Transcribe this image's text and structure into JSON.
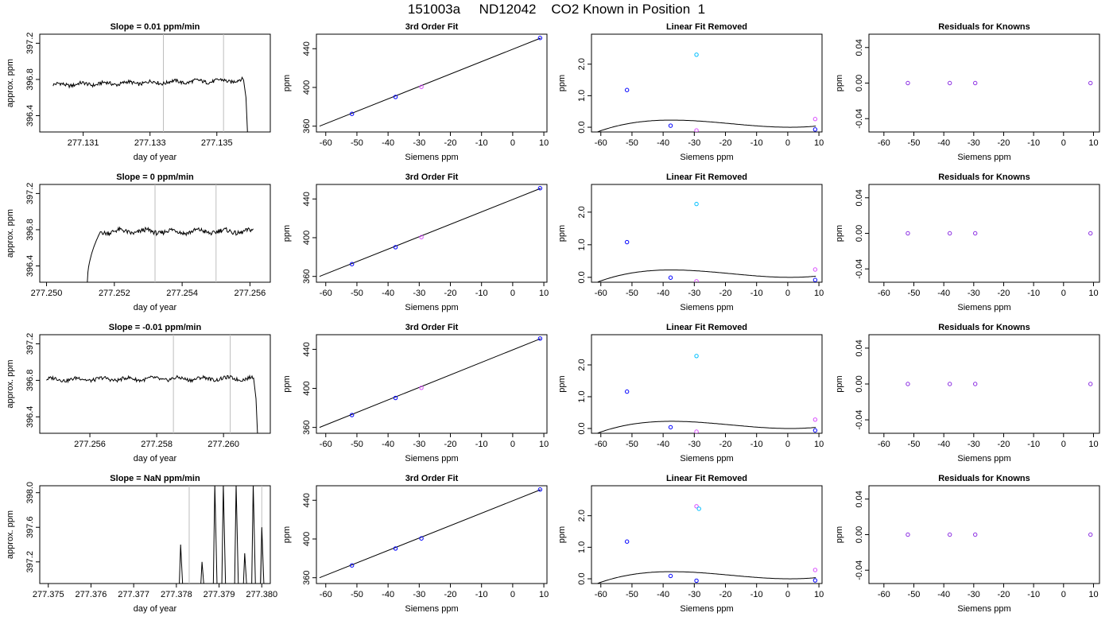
{
  "figure_title": "151003a     ND12042    CO2 Known in Position  1",
  "colors": {
    "axis": "#000000",
    "curve": "#000000",
    "gridline": "#bebebe",
    "blue": "#0000ff",
    "cyan": "#00bfff",
    "magenta": "#d94cff",
    "purple": "#8a2be2"
  },
  "chart_data": [
    {
      "row": 1,
      "panel": "time-series",
      "type": "line",
      "title": "Slope =  0.01  ppm/min",
      "xlabel": "day of year",
      "ylabel": "approx. ppm",
      "xlim": [
        277.1297,
        277.1366
      ],
      "ylim": [
        396.22,
        397.3
      ],
      "xticks": [
        277.131,
        277.133,
        277.135
      ],
      "xtick_labels": [
        "277.131",
        "277.133",
        "277.135"
      ],
      "yticks": [
        396.4,
        396.8,
        397.2
      ],
      "ytick_labels": [
        "396.4",
        "396.8",
        "397.2"
      ],
      "vlines": [
        277.1334,
        277.1352
      ],
      "level": 396.73,
      "series": [
        {
          "x": [
            277.1301,
            277.1358
          ],
          "y": [
            396.74,
            396.79
          ],
          "tail": [
            396.6,
            396.2
          ]
        }
      ]
    },
    {
      "row": 1,
      "panel": "fit",
      "type": "scatter",
      "title": "3rd Order Fit",
      "xlabel": "Siemens ppm",
      "ylabel": "ppm",
      "xlim": [
        -63,
        11
      ],
      "ylim": [
        354,
        455
      ],
      "xticks": [
        -60,
        -50,
        -40,
        -30,
        -20,
        -10,
        0,
        10
      ],
      "yticks": [
        360,
        400,
        440
      ],
      "line": [
        [
          -62,
          360
        ],
        [
          9,
          451
        ]
      ],
      "points": [
        {
          "x": -51.6,
          "y": 372.7,
          "color": "blue"
        },
        {
          "x": -37.6,
          "y": 390.2,
          "color": "blue"
        },
        {
          "x": -29.3,
          "y": 400.6,
          "color": "magenta"
        },
        {
          "x": 8.8,
          "y": 451.1,
          "color": "blue"
        }
      ]
    },
    {
      "row": 1,
      "panel": "linear-removed",
      "type": "scatter",
      "title": "Linear Fit Removed",
      "xlabel": "Siemens ppm",
      "ylabel": "ppm",
      "xlim": [
        -63,
        11
      ],
      "ylim": [
        -0.15,
        2.95
      ],
      "xticks": [
        -60,
        -50,
        -40,
        -30,
        -20,
        -10,
        0,
        10
      ],
      "yticks": [
        0.0,
        1.0,
        2.0
      ],
      "ytick_labels": [
        "0.0",
        "1.0",
        "2.0"
      ],
      "curve_coeffs": [
        0.0,
        -0.0007,
        0.00045,
        8.2e-06
      ],
      "points": [
        {
          "x": -51.6,
          "y": 1.18,
          "color": "blue"
        },
        {
          "x": -37.6,
          "y": 0.05,
          "color": "blue"
        },
        {
          "x": -29.3,
          "y": 2.3,
          "color": "cyan"
        },
        {
          "x": -29.3,
          "y": -0.1,
          "color": "magenta"
        },
        {
          "x": 8.8,
          "y": 0.26,
          "color": "magenta"
        },
        {
          "x": 8.8,
          "y": -0.07,
          "color": "blue"
        }
      ]
    },
    {
      "row": 1,
      "panel": "residuals",
      "type": "scatter",
      "title": "Residuals for Knowns",
      "xlabel": "Siemens ppm",
      "ylabel": "ppm",
      "xlim": [
        -65,
        12
      ],
      "ylim": [
        -0.055,
        0.055
      ],
      "xticks": [
        -60,
        -50,
        -40,
        -30,
        -20,
        -10,
        0,
        10
      ],
      "yticks": [
        -0.04,
        0.0,
        0.04
      ],
      "ytick_labels": [
        "-0.04",
        "0.00",
        "0.04"
      ],
      "points": [
        {
          "x": -52,
          "y": 0,
          "color": "purple"
        },
        {
          "x": -38,
          "y": 0,
          "color": "purple"
        },
        {
          "x": -29.5,
          "y": 0,
          "color": "purple"
        },
        {
          "x": 9,
          "y": 0,
          "color": "purple"
        }
      ]
    },
    {
      "row": 2,
      "panel": "time-series",
      "type": "line",
      "title": "Slope =  0  ppm/min",
      "xlabel": "day of year",
      "ylabel": "approx. ppm",
      "xlim": [
        277.2498,
        277.2566
      ],
      "ylim": [
        396.22,
        397.3
      ],
      "xticks": [
        277.25,
        277.252,
        277.254,
        277.256
      ],
      "xtick_labels": [
        "277.250",
        "277.252",
        "277.254",
        "277.256"
      ],
      "yticks": [
        396.4,
        396.8,
        397.2
      ],
      "ytick_labels": [
        "396.4",
        "396.8",
        "397.2"
      ],
      "vlines": [
        277.2532,
        277.255
      ],
      "level": 396.78,
      "series": [
        {
          "x": [
            277.2512,
            277.2561
          ],
          "y": [
            396.2,
            396.8
          ],
          "ramp": true
        }
      ]
    },
    {
      "row": 2,
      "panel": "fit",
      "type": "scatter",
      "title": "3rd Order Fit",
      "xlabel": "Siemens ppm",
      "ylabel": "ppm",
      "xlim": [
        -63,
        11
      ],
      "ylim": [
        354,
        455
      ],
      "xticks": [
        -60,
        -50,
        -40,
        -30,
        -20,
        -10,
        0,
        10
      ],
      "yticks": [
        360,
        400,
        440
      ],
      "line": [
        [
          -62,
          360
        ],
        [
          9,
          451
        ]
      ],
      "points": [
        {
          "x": -51.6,
          "y": 372.7,
          "color": "blue"
        },
        {
          "x": -37.6,
          "y": 390.2,
          "color": "blue"
        },
        {
          "x": -29.3,
          "y": 400.6,
          "color": "magenta"
        },
        {
          "x": 8.8,
          "y": 451.1,
          "color": "blue"
        }
      ]
    },
    {
      "row": 2,
      "panel": "linear-removed",
      "type": "scatter",
      "title": "Linear Fit Removed",
      "xlabel": "Siemens ppm",
      "ylabel": "ppm",
      "xlim": [
        -63,
        11
      ],
      "ylim": [
        -0.15,
        2.85
      ],
      "xticks": [
        -60,
        -50,
        -40,
        -30,
        -20,
        -10,
        0,
        10
      ],
      "yticks": [
        0.0,
        1.0,
        2.0
      ],
      "ytick_labels": [
        "0.0",
        "1.0",
        "2.0"
      ],
      "curve_coeffs": [
        0.0,
        -0.0007,
        0.00045,
        8.2e-06
      ],
      "points": [
        {
          "x": -51.6,
          "y": 1.08,
          "color": "blue"
        },
        {
          "x": -37.6,
          "y": -0.01,
          "color": "blue"
        },
        {
          "x": -29.3,
          "y": 2.25,
          "color": "cyan"
        },
        {
          "x": -29.3,
          "y": -0.12,
          "color": "magenta"
        },
        {
          "x": 8.8,
          "y": 0.24,
          "color": "magenta"
        },
        {
          "x": 8.8,
          "y": -0.08,
          "color": "blue"
        }
      ]
    },
    {
      "row": 2,
      "panel": "residuals",
      "type": "scatter",
      "title": "Residuals for Knowns",
      "xlabel": "Siemens ppm",
      "ylabel": "ppm",
      "xlim": [
        -65,
        12
      ],
      "ylim": [
        -0.055,
        0.055
      ],
      "xticks": [
        -60,
        -50,
        -40,
        -30,
        -20,
        -10,
        0,
        10
      ],
      "yticks": [
        -0.04,
        0.0,
        0.04
      ],
      "ytick_labels": [
        "-0.04",
        "0.00",
        "0.04"
      ],
      "points": [
        {
          "x": -52,
          "y": 0,
          "color": "purple"
        },
        {
          "x": -38,
          "y": 0,
          "color": "purple"
        },
        {
          "x": -29.5,
          "y": 0,
          "color": "purple"
        },
        {
          "x": 9,
          "y": 0,
          "color": "purple"
        }
      ]
    },
    {
      "row": 3,
      "panel": "time-series",
      "type": "line",
      "title": "Slope =  -0.01  ppm/min",
      "xlabel": "day of year",
      "ylabel": "approx. ppm",
      "xlim": [
        277.2545,
        277.2614
      ],
      "ylim": [
        396.22,
        397.3
      ],
      "xticks": [
        277.256,
        277.258,
        277.26
      ],
      "xtick_labels": [
        "277.256",
        "277.258",
        "277.260"
      ],
      "yticks": [
        396.4,
        396.8,
        397.2
      ],
      "ytick_labels": [
        "396.4",
        "396.8",
        "397.2"
      ],
      "vlines": [
        277.2585,
        277.2602
      ],
      "level": 396.8,
      "series": [
        {
          "x": [
            277.2547,
            277.2609
          ],
          "y": [
            396.81,
            396.82
          ],
          "tail": [
            396.6,
            396.2
          ]
        }
      ]
    },
    {
      "row": 3,
      "panel": "fit",
      "type": "scatter",
      "title": "3rd Order Fit",
      "xlabel": "Siemens ppm",
      "ylabel": "ppm",
      "xlim": [
        -63,
        11
      ],
      "ylim": [
        354,
        455
      ],
      "xticks": [
        -60,
        -50,
        -40,
        -30,
        -20,
        -10,
        0,
        10
      ],
      "yticks": [
        360,
        400,
        440
      ],
      "line": [
        [
          -62,
          360
        ],
        [
          9,
          451
        ]
      ],
      "points": [
        {
          "x": -51.6,
          "y": 372.7,
          "color": "blue"
        },
        {
          "x": -37.6,
          "y": 390.2,
          "color": "blue"
        },
        {
          "x": -29.3,
          "y": 400.6,
          "color": "magenta"
        },
        {
          "x": 8.8,
          "y": 451.1,
          "color": "blue"
        }
      ]
    },
    {
      "row": 3,
      "panel": "linear-removed",
      "type": "scatter",
      "title": "Linear Fit Removed",
      "xlabel": "Siemens ppm",
      "ylabel": "ppm",
      "xlim": [
        -63,
        11
      ],
      "ylim": [
        -0.15,
        2.95
      ],
      "xticks": [
        -60,
        -50,
        -40,
        -30,
        -20,
        -10,
        0,
        10
      ],
      "yticks": [
        0.0,
        1.0,
        2.0
      ],
      "ytick_labels": [
        "0.0",
        "1.0",
        "2.0"
      ],
      "curve_coeffs": [
        0.0,
        -0.0007,
        0.00045,
        8.2e-06
      ],
      "points": [
        {
          "x": -51.6,
          "y": 1.16,
          "color": "blue"
        },
        {
          "x": -37.6,
          "y": 0.04,
          "color": "blue"
        },
        {
          "x": -29.3,
          "y": 2.28,
          "color": "cyan"
        },
        {
          "x": -29.3,
          "y": -0.1,
          "color": "magenta"
        },
        {
          "x": 8.8,
          "y": 0.28,
          "color": "magenta"
        },
        {
          "x": 8.8,
          "y": -0.06,
          "color": "blue"
        }
      ]
    },
    {
      "row": 3,
      "panel": "residuals",
      "type": "scatter",
      "title": "Residuals for Knowns",
      "xlabel": "Siemens ppm",
      "ylabel": "ppm",
      "xlim": [
        -65,
        12
      ],
      "ylim": [
        -0.055,
        0.055
      ],
      "xticks": [
        -60,
        -50,
        -40,
        -30,
        -20,
        -10,
        0,
        10
      ],
      "yticks": [
        -0.04,
        0.0,
        0.04
      ],
      "ytick_labels": [
        "-0.04",
        "0.00",
        "0.04"
      ],
      "points": [
        {
          "x": -52,
          "y": 0,
          "color": "purple"
        },
        {
          "x": -38,
          "y": 0,
          "color": "purple"
        },
        {
          "x": -29.5,
          "y": 0,
          "color": "purple"
        },
        {
          "x": 9,
          "y": 0,
          "color": "purple"
        }
      ]
    },
    {
      "row": 4,
      "panel": "time-series",
      "type": "line",
      "title": "Slope =  NaN  ppm/min",
      "xlabel": "day of year",
      "ylabel": "approx. ppm",
      "xlim": [
        277.3748,
        277.3802
      ],
      "ylim": [
        396.95,
        398.08
      ],
      "xticks": [
        277.375,
        277.376,
        277.377,
        277.378,
        277.379,
        277.38
      ],
      "xtick_labels": [
        "277.375",
        "277.376",
        "277.377",
        "277.378",
        "277.379",
        "277.380"
      ],
      "yticks": [
        397.2,
        397.6,
        398.0
      ],
      "ytick_labels": [
        "397.2",
        "397.6",
        "398.0"
      ],
      "vlines": [
        277.3783,
        277.38
      ],
      "level": 397.0,
      "series": [
        {
          "x": [
            277.378,
            277.3802
          ],
          "spikes": [
            [
              277.3781,
              397.4
            ],
            [
              277.3786,
              397.2
            ],
            [
              277.3789,
              398.1
            ],
            [
              277.3791,
              398.1
            ],
            [
              277.3794,
              398.1
            ],
            [
              277.3796,
              397.3
            ],
            [
              277.3798,
              398.1
            ],
            [
              277.38,
              397.6
            ]
          ]
        }
      ]
    },
    {
      "row": 4,
      "panel": "fit",
      "type": "scatter",
      "title": "3rd Order Fit",
      "xlabel": "Siemens ppm",
      "ylabel": "ppm",
      "xlim": [
        -63,
        11
      ],
      "ylim": [
        354,
        455
      ],
      "xticks": [
        -60,
        -50,
        -40,
        -30,
        -20,
        -10,
        0,
        10
      ],
      "yticks": [
        360,
        400,
        440
      ],
      "line": [
        [
          -62,
          360
        ],
        [
          9,
          451
        ]
      ],
      "points": [
        {
          "x": -51.6,
          "y": 372.7,
          "color": "blue"
        },
        {
          "x": -37.6,
          "y": 390.2,
          "color": "blue"
        },
        {
          "x": -29.3,
          "y": 400.6,
          "color": "blue"
        },
        {
          "x": 8.8,
          "y": 451.1,
          "color": "blue"
        }
      ]
    },
    {
      "row": 4,
      "panel": "linear-removed",
      "type": "scatter",
      "title": "Linear Fit Removed",
      "xlabel": "Siemens ppm",
      "ylabel": "ppm",
      "xlim": [
        -63,
        11
      ],
      "ylim": [
        -0.15,
        2.95
      ],
      "xticks": [
        -60,
        -50,
        -40,
        -30,
        -20,
        -10,
        0,
        10
      ],
      "yticks": [
        0.0,
        1.0,
        2.0
      ],
      "ytick_labels": [
        "0.0",
        "1.0",
        "2.0"
      ],
      "curve_coeffs": [
        0.0,
        -0.0007,
        0.00045,
        8.2e-06
      ],
      "points": [
        {
          "x": -51.6,
          "y": 1.18,
          "color": "blue"
        },
        {
          "x": -37.6,
          "y": 0.09,
          "color": "blue"
        },
        {
          "x": -29.3,
          "y": 2.3,
          "color": "magenta"
        },
        {
          "x": -28.5,
          "y": 2.22,
          "color": "cyan"
        },
        {
          "x": -29.3,
          "y": -0.06,
          "color": "blue"
        },
        {
          "x": 8.8,
          "y": 0.28,
          "color": "magenta"
        },
        {
          "x": 8.8,
          "y": -0.05,
          "color": "blue"
        }
      ]
    },
    {
      "row": 4,
      "panel": "residuals",
      "type": "scatter",
      "title": "Residuals for Knowns",
      "xlabel": "Siemens ppm",
      "ylabel": "ppm",
      "xlim": [
        -65,
        12
      ],
      "ylim": [
        -0.055,
        0.055
      ],
      "xticks": [
        -60,
        -50,
        -40,
        -30,
        -20,
        -10,
        0,
        10
      ],
      "yticks": [
        -0.04,
        0.0,
        0.04
      ],
      "ytick_labels": [
        "-0.04",
        "0.00",
        "0.04"
      ],
      "points": [
        {
          "x": -52,
          "y": 0,
          "color": "purple"
        },
        {
          "x": -38,
          "y": 0,
          "color": "purple"
        },
        {
          "x": -29.5,
          "y": 0,
          "color": "purple"
        },
        {
          "x": 9,
          "y": 0,
          "color": "purple"
        }
      ]
    }
  ]
}
